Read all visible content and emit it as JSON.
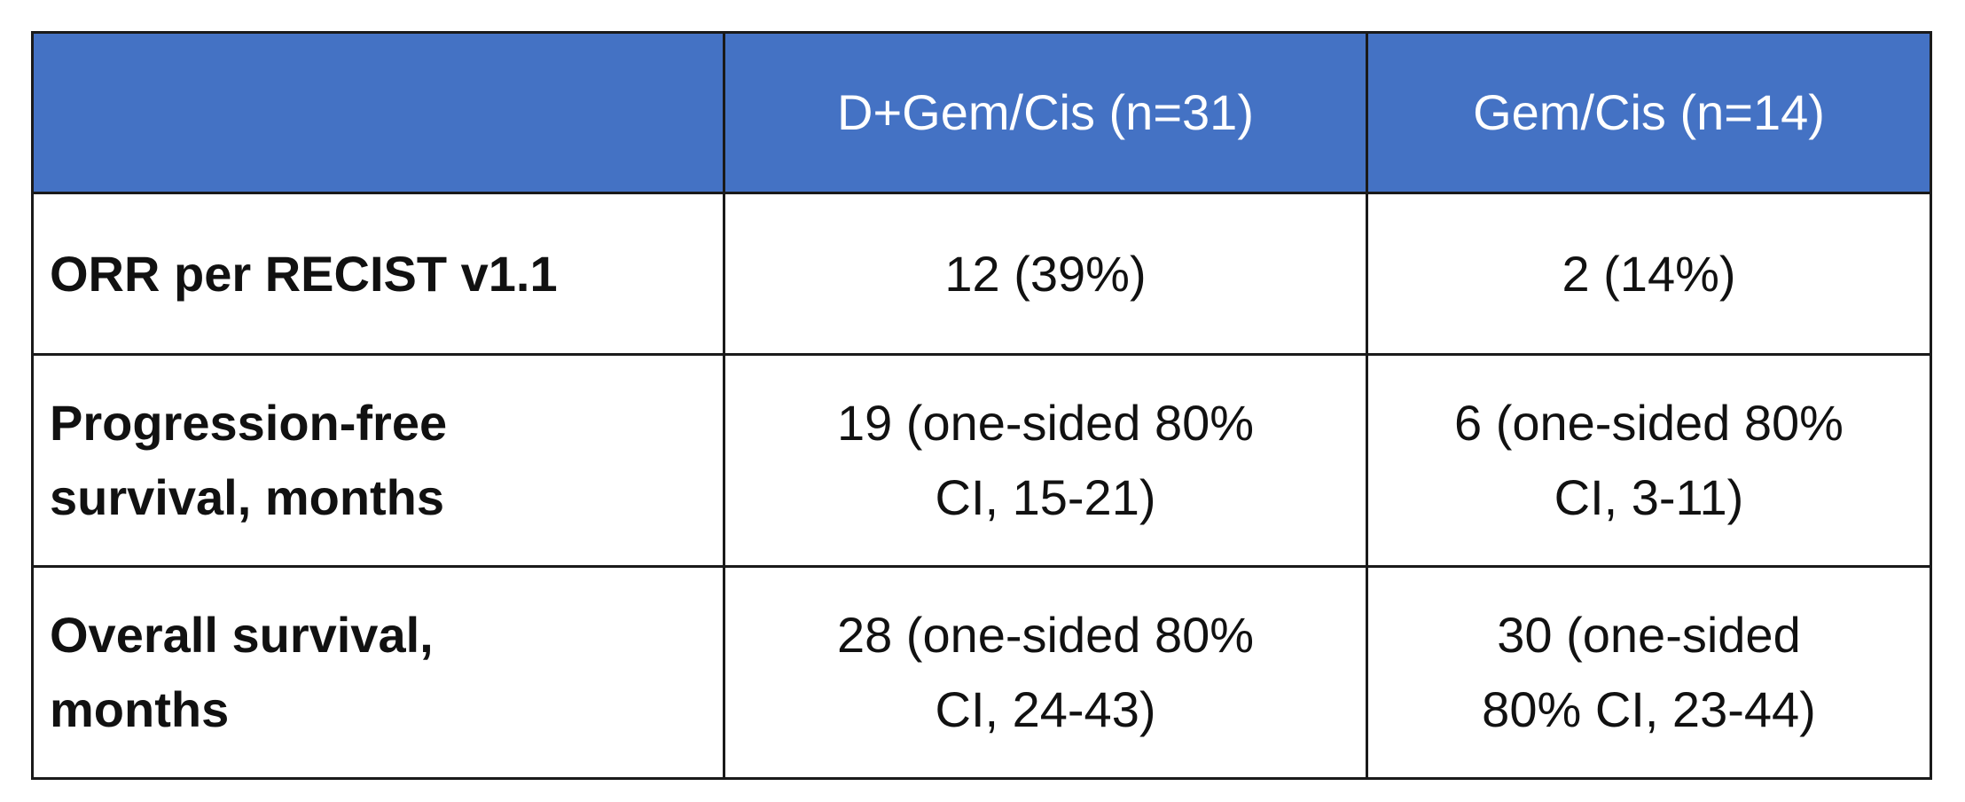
{
  "table": {
    "header": [
      "",
      "D+Gem/Cis (n=31)",
      "Gem/Cis (n=14)"
    ],
    "rows": [
      [
        [
          "ORR per RECIST v1.1"
        ],
        [
          "12 (39%)"
        ],
        [
          "2 (14%)"
        ]
      ],
      [
        [
          "Progression-free",
          "survival, months"
        ],
        [
          "19 (one-sided 80%",
          "CI, 15-21)"
        ],
        [
          "6 (one-sided 80%",
          "CI, 3-11)"
        ]
      ],
      [
        [
          "Overall survival,",
          "months"
        ],
        [
          "28 (one-sided 80%",
          "CI, 24-43)"
        ],
        [
          "30 (one-sided",
          "80% CI, 23-44)"
        ]
      ]
    ]
  }
}
